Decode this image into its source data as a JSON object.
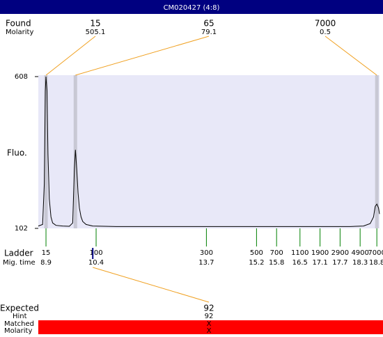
{
  "title": "CM020427 (4:8)",
  "found": {
    "label": "Found",
    "sub_label": "Molarity",
    "peaks": [
      {
        "size": 15,
        "molarity": 505.1,
        "time": 8.9
      },
      {
        "size": 65,
        "molarity": 79.1,
        "time": 9.78
      },
      {
        "size": 7000,
        "molarity": 0.5,
        "time": 18.8
      }
    ]
  },
  "y_axis": {
    "label": "Fluo.",
    "ylim": [
      102,
      608
    ],
    "yticks": [
      102,
      608
    ]
  },
  "xlim": [
    8.67,
    18.88
  ],
  "trace": {
    "x": [
      8.67,
      8.8,
      8.85,
      8.88,
      8.9,
      8.93,
      8.96,
      9.0,
      9.05,
      9.1,
      9.2,
      9.4,
      9.6,
      9.7,
      9.75,
      9.78,
      9.82,
      9.86,
      9.9,
      9.95,
      10.0,
      10.1,
      10.3,
      11,
      12,
      13,
      14,
      15,
      16,
      17,
      18,
      18.4,
      18.6,
      18.7,
      18.75,
      18.8,
      18.85,
      18.88
    ],
    "values": [
      110,
      115,
      250,
      560,
      608,
      560,
      350,
      200,
      140,
      120,
      112,
      110,
      109,
      120,
      300,
      364,
      300,
      220,
      170,
      140,
      125,
      115,
      110,
      108,
      108,
      108,
      108,
      108,
      108,
      108,
      108,
      110,
      118,
      140,
      175,
      183,
      170,
      150
    ]
  },
  "ladder": {
    "label": "Ladder",
    "sub_label": "Mig. time",
    "sizes": [
      15,
      100,
      300,
      500,
      700,
      1100,
      1900,
      2900,
      4900,
      7000
    ],
    "times": [
      8.9,
      10.4,
      13.7,
      15.2,
      15.8,
      16.5,
      17.1,
      17.7,
      18.3,
      18.8
    ]
  },
  "expected": {
    "label": "Expected",
    "size": 92,
    "time": 10.3,
    "hint_label": "Hint",
    "hint": 92,
    "matched_label": "Matched",
    "matched": "X",
    "molarity_label": "Molarity",
    "molarity": "X"
  }
}
